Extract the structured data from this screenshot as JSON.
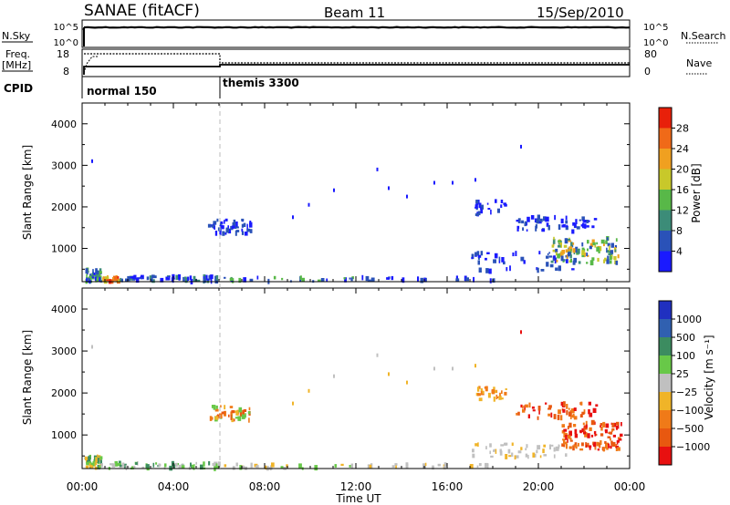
{
  "header": {
    "title": "SANAE (fitACF)",
    "beam": "Beam 11",
    "date": "15/Sep/2010"
  },
  "status_panels": {
    "nsky_label": "N.Sky",
    "nsky_ticks": [
      "10^5",
      "10^0"
    ],
    "nsearch_label": "N.Search",
    "nsearch_ticks": [
      "10^5",
      "10^0"
    ],
    "freq_label_line1": "Freq.",
    "freq_label_line2": "[MHz]",
    "freq_ticks": [
      "18",
      "8"
    ],
    "nave_label": "Nave",
    "nave_ticks": [
      "80",
      "0"
    ],
    "cpid_label": "CPID",
    "cpid_modes": [
      {
        "name": "normal 150",
        "start_hour": 0
      },
      {
        "name": "themis 3300",
        "start_hour": 6
      }
    ]
  },
  "chart_data": [
    {
      "type": "heatmap",
      "name": "power",
      "xlabel": "Time UT",
      "ylabel": "Slant Range [km]",
      "xlim": [
        0,
        24
      ],
      "ylim": [
        200,
        4500
      ],
      "xticks": [
        "00:00",
        "04:00",
        "08:00",
        "12:00",
        "16:00",
        "20:00",
        "00:00"
      ],
      "yticks": [
        1000,
        2000,
        3000,
        4000
      ],
      "colorbar_label": "Power [dB]",
      "colorbar_ticks": [
        "4",
        "8",
        "12",
        "16",
        "20",
        "24",
        "28"
      ],
      "colorbar_colors": [
        "#1a1aff",
        "#2a52b8",
        "#3c8c78",
        "#58b848",
        "#c8c82a",
        "#f0a020",
        "#f06a18",
        "#e8200a"
      ],
      "clusters": [
        {
          "t0": 0.1,
          "t1": 0.8,
          "r0": 200,
          "r1": 480,
          "cls": [
            0,
            1,
            2,
            3
          ],
          "n": 45
        },
        {
          "t0": 0.8,
          "t1": 1.6,
          "r0": 200,
          "r1": 320,
          "cls": [
            4,
            5,
            6,
            7
          ],
          "n": 25
        },
        {
          "t0": 1.6,
          "t1": 6.0,
          "r0": 200,
          "r1": 330,
          "cls": [
            0,
            1,
            2
          ],
          "n": 60
        },
        {
          "t0": 5.5,
          "t1": 7.4,
          "r0": 1350,
          "r1": 1700,
          "cls": [
            0,
            1
          ],
          "n": 45
        },
        {
          "t0": 6.0,
          "t1": 12.0,
          "r0": 200,
          "r1": 300,
          "cls": [
            0,
            1,
            3
          ],
          "n": 25
        },
        {
          "t0": 17.2,
          "t1": 18.6,
          "r0": 1800,
          "r1": 2150,
          "cls": [
            0,
            1
          ],
          "n": 25
        },
        {
          "t0": 19.0,
          "t1": 22.5,
          "r0": 1400,
          "r1": 1750,
          "cls": [
            0,
            1
          ],
          "n": 55
        },
        {
          "t0": 20.5,
          "t1": 23.5,
          "r0": 650,
          "r1": 1250,
          "cls": [
            1,
            2,
            3,
            4,
            5
          ],
          "n": 110
        },
        {
          "t0": 17.0,
          "t1": 21.5,
          "r0": 450,
          "r1": 900,
          "cls": [
            0,
            1
          ],
          "n": 45
        },
        {
          "t0": 12.0,
          "t1": 18.0,
          "r0": 220,
          "r1": 300,
          "cls": [
            0,
            1
          ],
          "n": 20
        }
      ],
      "points": [
        [
          0.4,
          3100,
          0
        ],
        [
          9.9,
          2050,
          0
        ],
        [
          11.0,
          2400,
          0
        ],
        [
          13.4,
          2450,
          0
        ],
        [
          14.2,
          2250,
          0
        ],
        [
          15.4,
          2580,
          0
        ],
        [
          16.2,
          2580,
          0
        ],
        [
          17.2,
          2650,
          0
        ],
        [
          19.2,
          3450,
          0
        ],
        [
          9.2,
          1750,
          0
        ],
        [
          12.9,
          2900,
          0
        ]
      ]
    },
    {
      "type": "heatmap",
      "name": "velocity",
      "xlabel": "Time UT",
      "ylabel": "Slant Range [km]",
      "xlim": [
        0,
        24
      ],
      "ylim": [
        200,
        4500
      ],
      "xticks": [
        "00:00",
        "04:00",
        "08:00",
        "12:00",
        "16:00",
        "20:00",
        "00:00"
      ],
      "yticks": [
        1000,
        2000,
        3000,
        4000
      ],
      "colorbar_label": "Velocity [m s⁻¹]",
      "colorbar_ticks": [
        "1000",
        "500",
        "100",
        "25",
        "−25",
        "−100",
        "−500",
        "−1000"
      ],
      "colorbar_colors": [
        "#2030c0",
        "#3060b0",
        "#3c8c60",
        "#68c848",
        "#c0c0c0",
        "#f0b428",
        "#f07a18",
        "#e85810",
        "#e81010"
      ],
      "clusters": [
        {
          "t0": 0.1,
          "t1": 0.8,
          "r0": 200,
          "r1": 480,
          "cls": [
            2,
            3,
            5
          ],
          "n": 45
        },
        {
          "t0": 0.8,
          "t1": 6.0,
          "r0": 200,
          "r1": 330,
          "cls": [
            2,
            3,
            4
          ],
          "n": 60
        },
        {
          "t0": 5.5,
          "t1": 7.4,
          "r0": 1350,
          "r1": 1700,
          "cls": [
            3,
            5,
            6,
            7
          ],
          "n": 40
        },
        {
          "t0": 6.0,
          "t1": 12.0,
          "r0": 200,
          "r1": 300,
          "cls": [
            3,
            4,
            5
          ],
          "n": 25
        },
        {
          "t0": 17.2,
          "t1": 18.6,
          "r0": 1800,
          "r1": 2150,
          "cls": [
            5,
            6
          ],
          "n": 25
        },
        {
          "t0": 19.0,
          "t1": 22.5,
          "r0": 1400,
          "r1": 1750,
          "cls": [
            6,
            7,
            8
          ],
          "n": 50
        },
        {
          "t0": 21.0,
          "t1": 23.6,
          "r0": 650,
          "r1": 1300,
          "cls": [
            6,
            7,
            8
          ],
          "n": 110
        },
        {
          "t0": 17.0,
          "t1": 21.5,
          "r0": 450,
          "r1": 800,
          "cls": [
            4,
            4,
            5
          ],
          "n": 45
        },
        {
          "t0": 12.0,
          "t1": 18.0,
          "r0": 220,
          "r1": 300,
          "cls": [
            4,
            5
          ],
          "n": 20
        }
      ],
      "points": [
        [
          0.4,
          3100,
          4
        ],
        [
          9.9,
          2050,
          5
        ],
        [
          11.0,
          2400,
          4
        ],
        [
          13.4,
          2450,
          5
        ],
        [
          14.2,
          2250,
          5
        ],
        [
          15.4,
          2580,
          4
        ],
        [
          16.2,
          2580,
          4
        ],
        [
          17.2,
          2650,
          5
        ],
        [
          19.2,
          3450,
          8
        ],
        [
          9.2,
          1750,
          5
        ],
        [
          12.9,
          2900,
          4
        ]
      ]
    }
  ]
}
